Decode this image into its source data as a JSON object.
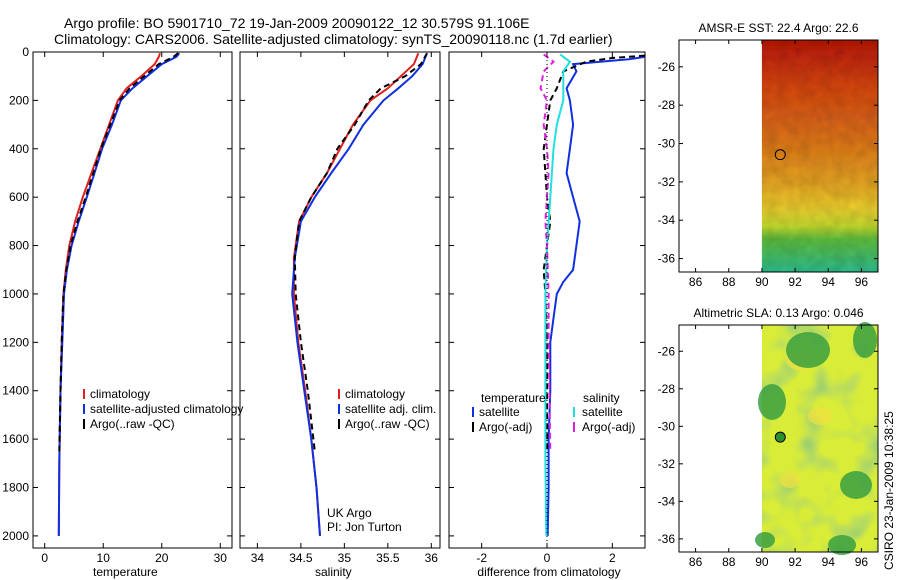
{
  "header": {
    "line1": "Argo profile: BO 5901710_72 19-Jan-2009 20090122_12 30.579S 91.106E",
    "line2": "Climatology: CARS2006. Satellite-adjusted climatology: synTS_20090118.nc (1.7d earlier)"
  },
  "stamp": "CSIRO 23-Jan-2009 10:38:25",
  "colors": {
    "climatology": "#e02020",
    "satellite": "#1030e0",
    "argo": "#000000",
    "satellite_salinity": "#20e0e0",
    "argo_salinity": "#e020e0"
  },
  "chart_data": [
    {
      "type": "line",
      "name": "temperature-profile",
      "xlabel": "temperature",
      "ylabel": "",
      "xlim": [
        -2,
        32
      ],
      "ylim": [
        2050,
        0
      ],
      "xticks": [
        0,
        10,
        20,
        30
      ],
      "yticks": [
        0,
        200,
        400,
        600,
        800,
        1000,
        1200,
        1400,
        1600,
        1800,
        2000
      ],
      "series": [
        {
          "name": "climatology",
          "color": "#e02020",
          "dash": "",
          "x": [
            19.7,
            19.5,
            18.8,
            16.5,
            14.0,
            12.5,
            11.0,
            9.5,
            8.0,
            6.5,
            5.2,
            4.2,
            3.6,
            3.2,
            2.9,
            2.7,
            2.5,
            2.4
          ],
          "y": [
            5,
            20,
            50,
            100,
            150,
            200,
            300,
            400,
            500,
            600,
            700,
            800,
            900,
            1000,
            1200,
            1400,
            1700,
            2000
          ]
        },
        {
          "name": "satellite-adjusted climatology",
          "color": "#1030e0",
          "dash": "",
          "x": [
            23.0,
            22.5,
            20.0,
            17.5,
            15.0,
            13.0,
            11.5,
            9.8,
            8.5,
            7.2,
            5.8,
            4.6,
            3.8,
            3.3,
            3.0,
            2.7,
            2.5,
            2.4
          ],
          "y": [
            5,
            20,
            50,
            100,
            150,
            200,
            300,
            400,
            500,
            600,
            700,
            800,
            900,
            1000,
            1200,
            1400,
            1700,
            2000
          ]
        },
        {
          "name": "Argo(..raw -QC)",
          "color": "#000000",
          "dash": "6,4",
          "x": [
            22.8,
            22.0,
            19.5,
            17.0,
            14.5,
            12.8,
            11.2,
            9.6,
            8.3,
            7.0,
            5.6,
            4.4,
            3.7,
            3.2,
            2.9,
            2.7,
            2.5
          ],
          "y": [
            5,
            20,
            50,
            100,
            150,
            200,
            300,
            400,
            500,
            600,
            700,
            800,
            900,
            1000,
            1200,
            1400,
            1650
          ]
        }
      ],
      "legend": [
        "climatology",
        "satellite-adjusted climatology",
        "Argo(..raw -QC)"
      ]
    },
    {
      "type": "line",
      "name": "salinity-profile",
      "xlabel": "salinity",
      "ylabel": "",
      "xlim": [
        33.8,
        36.1
      ],
      "ylim": [
        2050,
        0
      ],
      "xticks": [
        34,
        34.5,
        35,
        35.5,
        36
      ],
      "series": [
        {
          "name": "climatology",
          "color": "#e02020",
          "dash": "",
          "x": [
            35.85,
            35.8,
            35.65,
            35.5,
            35.3,
            35.1,
            34.95,
            34.8,
            34.62,
            34.48,
            34.42,
            34.42,
            34.47,
            34.55,
            34.62,
            34.68,
            34.72
          ],
          "y": [
            5,
            50,
            100,
            150,
            200,
            300,
            400,
            500,
            600,
            700,
            850,
            1000,
            1200,
            1400,
            1600,
            1800,
            2000
          ]
        },
        {
          "name": "satellite adj. clim.",
          "color": "#1030e0",
          "dash": "",
          "x": [
            35.95,
            35.9,
            35.78,
            35.62,
            35.45,
            35.22,
            35.05,
            34.85,
            34.66,
            34.5,
            34.43,
            34.4,
            34.46,
            34.54,
            34.62,
            34.68,
            34.72
          ],
          "y": [
            5,
            50,
            100,
            150,
            200,
            300,
            400,
            500,
            600,
            700,
            850,
            1000,
            1200,
            1400,
            1600,
            1800,
            2000
          ]
        },
        {
          "name": "Argo(..raw -QC)",
          "color": "#000000",
          "dash": "6,4",
          "x": [
            35.95,
            35.88,
            35.7,
            35.42,
            35.28,
            35.12,
            34.92,
            34.8,
            34.62,
            34.48,
            34.43,
            34.44,
            34.5,
            34.58,
            34.66
          ],
          "y": [
            5,
            50,
            100,
            150,
            200,
            300,
            400,
            500,
            600,
            700,
            850,
            1000,
            1200,
            1400,
            1650
          ]
        }
      ],
      "legend": [
        "climatology",
        "satellite adj. clim.",
        "Argo(..raw -QC)"
      ],
      "annotation": [
        "UK Argo",
        "PI: Jon Turton"
      ]
    },
    {
      "type": "line",
      "name": "difference-profile",
      "xlabel": "difference from climatology",
      "ylabel": "",
      "xlim": [
        -3,
        3
      ],
      "ylim": [
        2050,
        0
      ],
      "xticks": [
        -2,
        0,
        2
      ],
      "series": [
        {
          "name": "temperature satellite",
          "color": "#1030e0",
          "dash": "",
          "x": [
            3.0,
            2.5,
            0.8,
            0.9,
            0.6,
            0.7,
            0.8,
            0.7,
            0.6,
            0.8,
            1.0,
            0.9,
            0.8,
            0.5,
            0.3,
            0.2,
            0.1,
            0.1,
            0.05,
            0.05,
            0.02
          ],
          "y": [
            20,
            30,
            50,
            80,
            150,
            200,
            300,
            400,
            500,
            600,
            700,
            800,
            900,
            950,
            1000,
            1100,
            1200,
            1400,
            1600,
            1800,
            2000
          ]
        },
        {
          "name": "temperature Argo(-adj)",
          "color": "#000000",
          "dash": "6,4",
          "x": [
            3.0,
            2.0,
            1.2,
            0.5,
            0.3,
            0.1,
            0.0,
            -0.1,
            -0.05,
            0.0,
            0.1,
            0.0,
            -0.1,
            -0.05,
            0.0,
            0.0,
            0.0
          ],
          "y": [
            15,
            25,
            40,
            80,
            150,
            200,
            300,
            400,
            500,
            600,
            700,
            800,
            900,
            1000,
            1200,
            1400,
            1650
          ]
        },
        {
          "name": "salinity satellite",
          "color": "#20e0e0",
          "dash": "",
          "x": [
            0.4,
            0.7,
            0.5,
            0.5,
            0.5,
            0.3,
            0.2,
            0.15,
            0.1,
            0.05,
            0.0,
            -0.05,
            -0.05,
            -0.05,
            -0.05,
            -0.02
          ],
          "y": [
            10,
            40,
            80,
            150,
            200,
            300,
            400,
            500,
            600,
            700,
            800,
            1000,
            1200,
            1400,
            1700,
            2000
          ]
        },
        {
          "name": "salinity Argo(-adj)",
          "color": "#e020e0",
          "dash": "6,4",
          "x": [
            -0.1,
            0.2,
            -0.1,
            -0.2,
            0.0,
            -0.1,
            0.0,
            0.05,
            0.0,
            -0.05,
            0.0,
            0.05,
            0.05,
            0.1
          ],
          "y": [
            10,
            40,
            80,
            150,
            200,
            300,
            400,
            500,
            600,
            700,
            800,
            1000,
            1200,
            1650
          ]
        }
      ],
      "legend_groups": [
        {
          "title": "temperature",
          "items": [
            "satellite",
            "Argo(-adj)"
          ]
        },
        {
          "title": "salinity",
          "items": [
            "satellite",
            "Argo(-adj)"
          ]
        }
      ]
    },
    {
      "type": "heatmap",
      "name": "sst-map",
      "title": "AMSR-E SST: 22.4 Argo: 22.6",
      "xlim": [
        85,
        97
      ],
      "ylim": [
        -36.7,
        -24.6
      ],
      "xticks": [
        86,
        88,
        90,
        92,
        94,
        96
      ],
      "yticks": [
        -26,
        -28,
        -30,
        -32,
        -34,
        -36
      ],
      "data_xlim": [
        90,
        97
      ],
      "marker": {
        "lon": 91.106,
        "lat": -30.579
      }
    },
    {
      "type": "heatmap",
      "name": "sla-map",
      "title": "Altimetric SLA: 0.13 Argo: 0.046",
      "xlim": [
        85,
        97
      ],
      "ylim": [
        -36.7,
        -24.6
      ],
      "xticks": [
        86,
        88,
        90,
        92,
        94,
        96
      ],
      "yticks": [
        -26,
        -28,
        -30,
        -32,
        -34,
        -36
      ],
      "data_xlim": [
        90,
        97
      ],
      "marker": {
        "lon": 91.106,
        "lat": -30.579
      }
    }
  ]
}
